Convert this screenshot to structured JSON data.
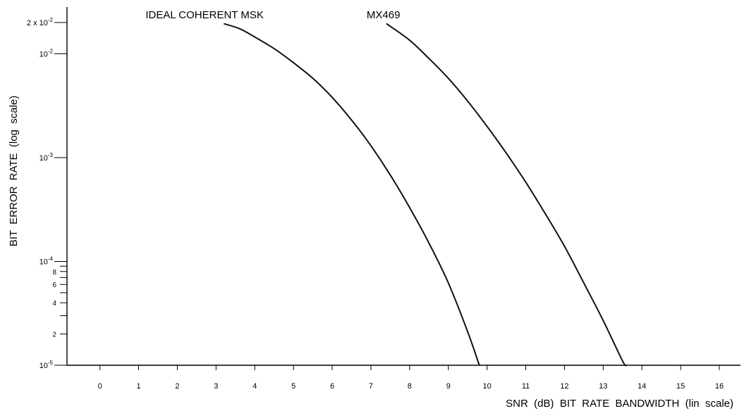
{
  "chart_data": {
    "type": "line",
    "title": "",
    "xlabel": "SNR  (dB)  BIT  RATE  BANDWIDTH  (lin  scale)",
    "ylabel": "BIT  ERROR  RATE  (log  scale)",
    "x_scale": "linear",
    "y_scale": "log",
    "xlim": [
      -0.85,
      16.4
    ],
    "ylim": [
      1e-05,
      0.02
    ],
    "grid": false,
    "x_ticks": [
      0,
      1,
      2,
      3,
      4,
      5,
      6,
      7,
      8,
      9,
      10,
      11,
      12,
      13,
      14,
      15,
      16
    ],
    "x_tick_labels": [
      "0",
      "1",
      "2",
      "3",
      "4",
      "5",
      "6",
      "7",
      "8",
      "9",
      "10",
      "11",
      "12",
      "13",
      "14",
      "15",
      "16"
    ],
    "y_major_ticks": [
      {
        "value": 0.02,
        "base": "2 x 10",
        "exp": "-2"
      },
      {
        "value": 0.01,
        "base": "10",
        "exp": "-2"
      },
      {
        "value": 0.001,
        "base": "10",
        "exp": "-3"
      },
      {
        "value": 0.0001,
        "base": "10",
        "exp": "-4"
      },
      {
        "value": 1e-05,
        "base": "10",
        "exp": "-5"
      }
    ],
    "y_minor_ticks": [
      {
        "value": 9e-05,
        "label": ""
      },
      {
        "value": 8e-05,
        "label": "8"
      },
      {
        "value": 7e-05,
        "label": ""
      },
      {
        "value": 6e-05,
        "label": "6"
      },
      {
        "value": 5e-05,
        "label": ""
      },
      {
        "value": 4e-05,
        "label": "4"
      },
      {
        "value": 3e-05,
        "label": ""
      },
      {
        "value": 2e-05,
        "label": "2"
      }
    ],
    "series": [
      {
        "name": "IDEAL  COHERENT  MSK",
        "x": [
          3.2,
          3.6,
          4.0,
          4.5,
          5.0,
          5.5,
          6.0,
          6.5,
          7.0,
          7.5,
          8.0,
          8.5,
          9.0,
          9.5,
          9.8
        ],
        "y": [
          0.0195,
          0.0175,
          0.0145,
          0.0112,
          0.0082,
          0.0058,
          0.0038,
          0.0023,
          0.0013,
          0.00068,
          0.00033,
          0.00015,
          6.2e-05,
          2.1e-05,
          1e-05
        ]
      },
      {
        "name": "MX469",
        "x": [
          7.4,
          8.0,
          8.5,
          9.0,
          9.5,
          10.0,
          10.5,
          11.0,
          11.5,
          12.0,
          12.5,
          13.0,
          13.5,
          13.6
        ],
        "y": [
          0.0195,
          0.0135,
          0.009,
          0.0058,
          0.0035,
          0.002,
          0.0011,
          0.00058,
          0.00029,
          0.00014,
          6.2e-05,
          2.7e-05,
          1.1e-05,
          1e-05
        ]
      }
    ]
  }
}
